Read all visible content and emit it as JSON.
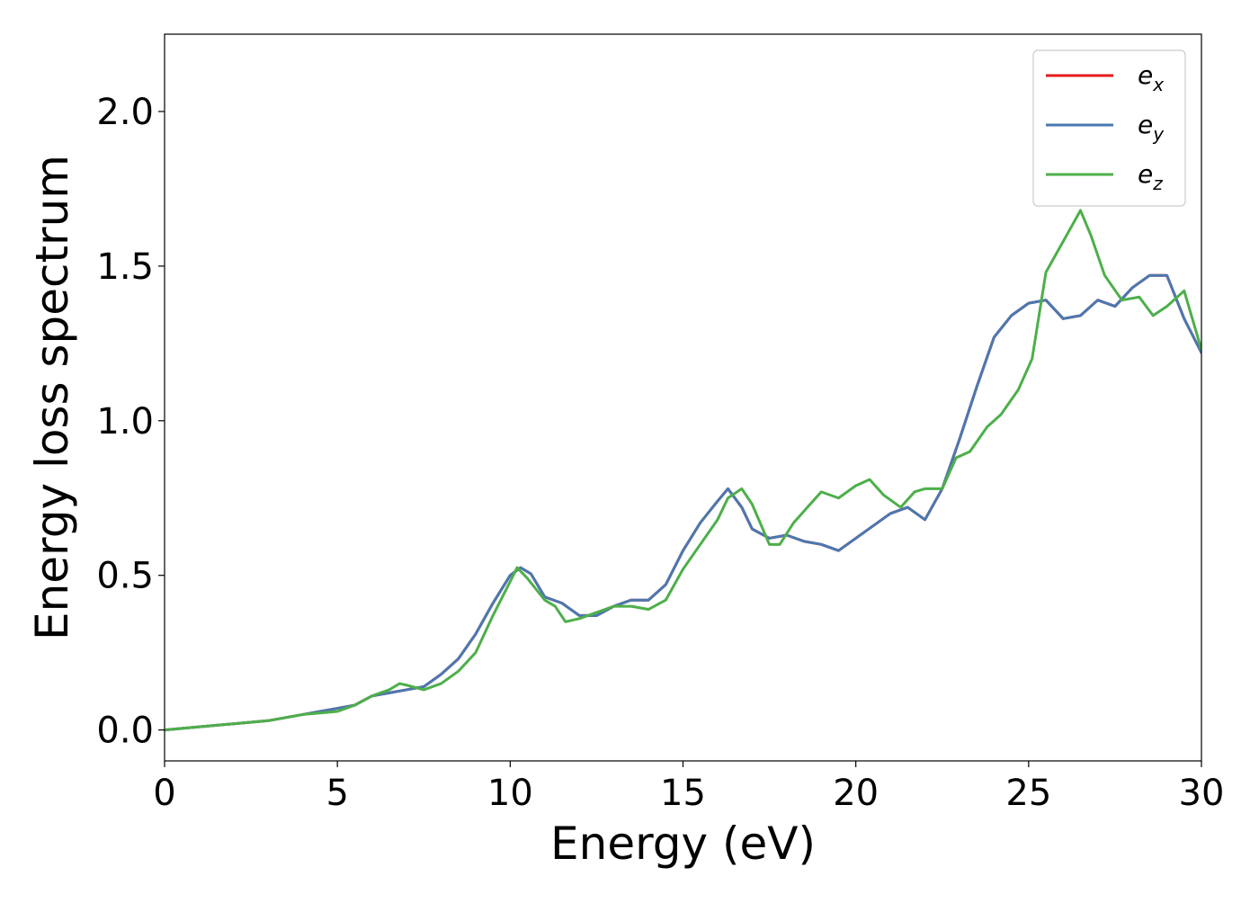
{
  "chart_data": {
    "type": "line",
    "title": "",
    "xlabel": "Energy (eV)",
    "ylabel": "Energy loss spectrum",
    "xlim": [
      0,
      30
    ],
    "ylim": [
      -0.1,
      2.25
    ],
    "xticks": [
      0,
      5,
      10,
      15,
      20,
      25,
      30
    ],
    "xtick_labels": [
      "0",
      "5",
      "10",
      "15",
      "20",
      "25",
      "30"
    ],
    "yticks": [
      0.0,
      0.5,
      1.0,
      1.5,
      2.0
    ],
    "ytick_labels": [
      "0.0",
      "0.5",
      "1.0",
      "1.5",
      "2.0"
    ],
    "grid": false,
    "legend_position": "top-right",
    "series": [
      {
        "name": "e",
        "subscript": "x",
        "color": "#e41a1c",
        "x": [
          0,
          1,
          2,
          3,
          4,
          4.5,
          5,
          5.5,
          6,
          6.5,
          7,
          7.5,
          8,
          8.5,
          9,
          9.5,
          10,
          10.3,
          10.6,
          11,
          11.5,
          12,
          12.5,
          13,
          13.5,
          14,
          14.5,
          15,
          15.5,
          16,
          16.3,
          16.7,
          17,
          17.5,
          18,
          18.5,
          19,
          19.5,
          20,
          20.5,
          21,
          21.5,
          22,
          22.5,
          23,
          23.5,
          24,
          24.5,
          25,
          25.5,
          26,
          26.5,
          27,
          27.5,
          28,
          28.5,
          29,
          29.5,
          30
        ],
        "y": [
          0.0,
          0.01,
          0.02,
          0.03,
          0.05,
          0.06,
          0.07,
          0.08,
          0.11,
          0.12,
          0.13,
          0.14,
          0.18,
          0.23,
          0.31,
          0.41,
          0.5,
          0.525,
          0.505,
          0.43,
          0.41,
          0.37,
          0.37,
          0.4,
          0.42,
          0.42,
          0.47,
          0.58,
          0.67,
          0.74,
          0.78,
          0.72,
          0.65,
          0.62,
          0.63,
          0.61,
          0.6,
          0.58,
          0.62,
          0.66,
          0.7,
          0.72,
          0.68,
          0.78,
          0.94,
          1.11,
          1.27,
          1.34,
          1.38,
          1.39,
          1.33,
          1.34,
          1.39,
          1.37,
          1.43,
          1.47,
          1.47,
          1.33,
          1.22
        ]
      },
      {
        "name": "e",
        "subscript": "y",
        "color": "#4a78b0",
        "x": [
          0,
          1,
          2,
          3,
          4,
          4.5,
          5,
          5.5,
          6,
          6.5,
          7,
          7.5,
          8,
          8.5,
          9,
          9.5,
          10,
          10.3,
          10.6,
          11,
          11.5,
          12,
          12.5,
          13,
          13.5,
          14,
          14.5,
          15,
          15.5,
          16,
          16.3,
          16.7,
          17,
          17.5,
          18,
          18.5,
          19,
          19.5,
          20,
          20.5,
          21,
          21.5,
          22,
          22.5,
          23,
          23.5,
          24,
          24.5,
          25,
          25.5,
          26,
          26.5,
          27,
          27.5,
          28,
          28.5,
          29,
          29.5,
          30
        ],
        "y": [
          0.0,
          0.01,
          0.02,
          0.03,
          0.05,
          0.06,
          0.07,
          0.08,
          0.11,
          0.12,
          0.13,
          0.14,
          0.18,
          0.23,
          0.31,
          0.41,
          0.5,
          0.525,
          0.505,
          0.43,
          0.41,
          0.37,
          0.37,
          0.4,
          0.42,
          0.42,
          0.47,
          0.58,
          0.67,
          0.74,
          0.78,
          0.72,
          0.65,
          0.62,
          0.63,
          0.61,
          0.6,
          0.58,
          0.62,
          0.66,
          0.7,
          0.72,
          0.68,
          0.78,
          0.94,
          1.11,
          1.27,
          1.34,
          1.38,
          1.39,
          1.33,
          1.34,
          1.39,
          1.37,
          1.43,
          1.47,
          1.47,
          1.33,
          1.22
        ]
      },
      {
        "name": "e",
        "subscript": "z",
        "color": "#4daf4a",
        "x": [
          0,
          1,
          2,
          3,
          4,
          4.5,
          5,
          5.5,
          6,
          6.5,
          6.8,
          7,
          7.5,
          8,
          8.5,
          9,
          9.5,
          10,
          10.2,
          10.5,
          11,
          11.3,
          11.6,
          12,
          12.5,
          13,
          13.5,
          14,
          14.5,
          15,
          15.5,
          16,
          16.3,
          16.7,
          17,
          17.5,
          17.8,
          18.2,
          18.6,
          19,
          19.5,
          20,
          20.4,
          20.8,
          21.3,
          21.7,
          22,
          22.5,
          22.9,
          23.3,
          23.8,
          24.2,
          24.7,
          25.1,
          25.5,
          26,
          26.5,
          26.8,
          27.2,
          27.7,
          28.2,
          28.6,
          29,
          29.5,
          30
        ],
        "y": [
          0.0,
          0.01,
          0.02,
          0.03,
          0.05,
          0.055,
          0.06,
          0.08,
          0.11,
          0.13,
          0.15,
          0.145,
          0.13,
          0.15,
          0.19,
          0.25,
          0.37,
          0.48,
          0.525,
          0.49,
          0.42,
          0.4,
          0.35,
          0.36,
          0.38,
          0.4,
          0.4,
          0.39,
          0.42,
          0.52,
          0.6,
          0.68,
          0.75,
          0.78,
          0.73,
          0.6,
          0.6,
          0.67,
          0.72,
          0.77,
          0.75,
          0.79,
          0.81,
          0.76,
          0.72,
          0.77,
          0.78,
          0.78,
          0.88,
          0.9,
          0.98,
          1.02,
          1.1,
          1.2,
          1.48,
          1.58,
          1.68,
          1.6,
          1.47,
          1.39,
          1.4,
          1.34,
          1.37,
          1.42,
          1.23
        ]
      }
    ]
  }
}
